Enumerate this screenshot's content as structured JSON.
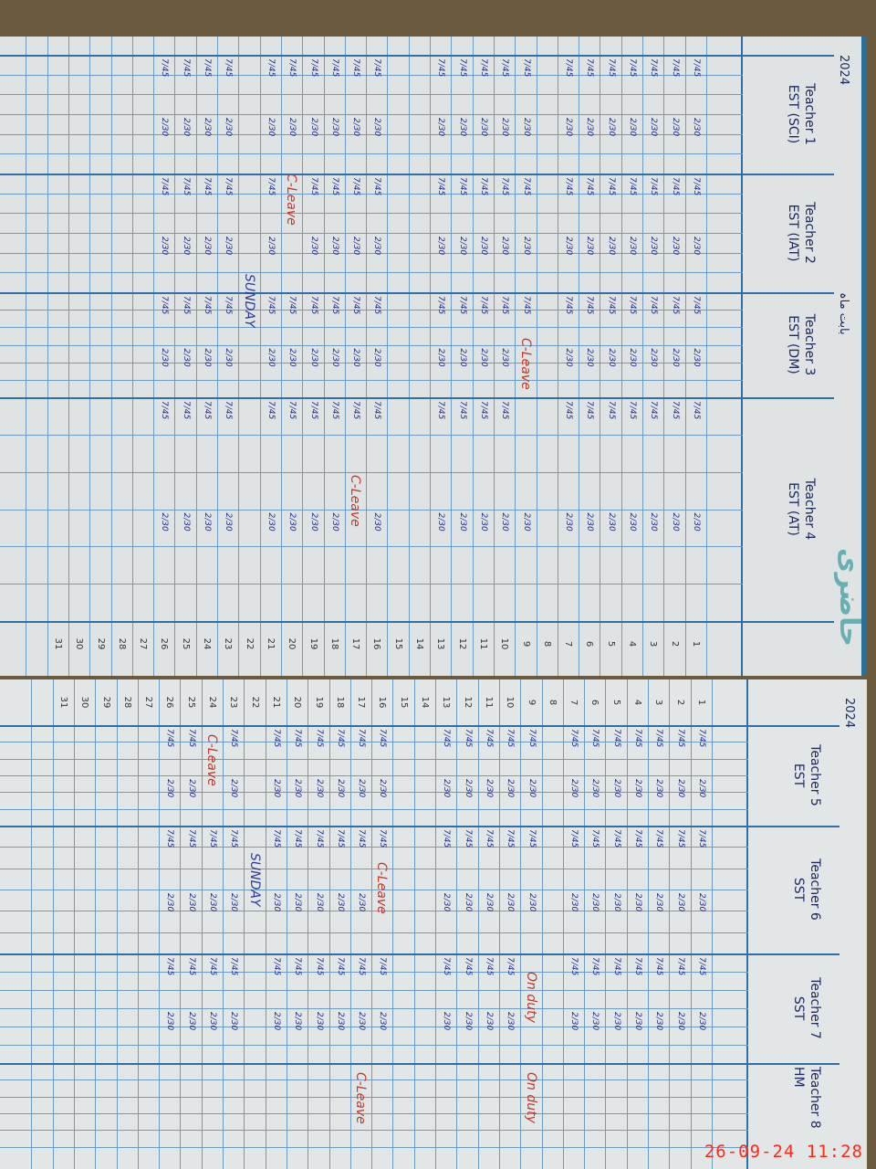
{
  "register": {
    "year": "2024",
    "left_page": {
      "month_label": "بابت ماہ",
      "teachers": [
        {
          "name": "Teacher 1",
          "post": "EST (SCI)"
        },
        {
          "name": "Teacher 2",
          "post": "EST (IAT)"
        },
        {
          "name": "Teacher 3",
          "post": "EST (DM)"
        },
        {
          "name": "Teacher 4",
          "post": "EST (AT)"
        }
      ]
    },
    "right_page": {
      "teachers": [
        {
          "name": "Teacher 5",
          "post": "EST"
        },
        {
          "name": "Teacher 6",
          "post": "SST"
        },
        {
          "name": "Teacher 7",
          "post": "SST"
        },
        {
          "name": "Teacher 8",
          "post": "HM"
        }
      ]
    },
    "days": [
      "1",
      "2",
      "3",
      "4",
      "5",
      "6",
      "7",
      "8",
      "9",
      "10",
      "11",
      "12",
      "13",
      "14",
      "15",
      "16",
      "17",
      "18",
      "19",
      "20",
      "21",
      "22",
      "23",
      "24",
      "25",
      "26",
      "27",
      "28",
      "29",
      "30",
      "31"
    ],
    "default_arrival": "7/45",
    "default_departure": "2/30",
    "notes": {
      "c_leave": "C-Leave",
      "sunday": "SUNDAY",
      "on_duty": "On duty"
    },
    "timestamp": "26-09-24  11:28"
  }
}
